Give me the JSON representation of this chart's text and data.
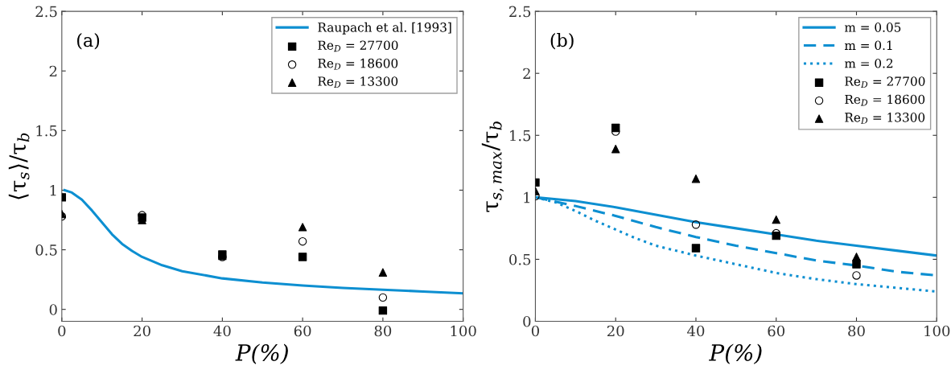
{
  "chart_data": [
    {
      "type": "scatter",
      "xlabel": "P(%)",
      "ylabel": "⟨τ$_{s}$⟩/τ$_{b}$",
      "annotations": [
        "(a)"
      ],
      "xlim": [
        0,
        100
      ],
      "xticks": [
        0,
        20,
        40,
        60,
        80,
        100
      ],
      "ylim": [
        -0.1,
        2.5
      ],
      "yticks": [
        0,
        0.5,
        1,
        1.5,
        2,
        2.5
      ],
      "grid": false,
      "legend": "top right",
      "series": [
        {
          "name": "Raupach et al. [1993]",
          "type": "line",
          "line_style": "solid",
          "marker": "none",
          "color": "#0d8fd1",
          "x": [
            0.7,
            2.5,
            5,
            7.5,
            10,
            12.5,
            15,
            17.5,
            20,
            25,
            30,
            40,
            50,
            60,
            70,
            80,
            90,
            100
          ],
          "values": [
            1.0,
            0.98,
            0.92,
            0.83,
            0.73,
            0.63,
            0.55,
            0.49,
            0.44,
            0.37,
            0.32,
            0.26,
            0.225,
            0.2,
            0.18,
            0.165,
            0.15,
            0.135
          ]
        },
        {
          "name": "Re$_{D}$ = 27700",
          "marker": "square",
          "color": "#000000",
          "x": [
            0,
            20,
            40,
            60,
            80
          ],
          "values": [
            0.94,
            0.77,
            0.46,
            0.44,
            -0.01
          ]
        },
        {
          "name": "Re$_{D}$ = 18600",
          "marker": "circle",
          "color": "#000000",
          "x": [
            0,
            20,
            40,
            60,
            80
          ],
          "values": [
            0.78,
            0.79,
            0.44,
            0.57,
            0.1
          ]
        },
        {
          "name": "Re$_{D}$ = 13300",
          "marker": "triangle",
          "color": "#000000",
          "x": [
            0,
            20,
            40,
            60,
            80
          ],
          "values": [
            0.8,
            0.75,
            0.45,
            0.69,
            0.31
          ]
        }
      ]
    },
    {
      "type": "scatter",
      "xlabel": "P(%)",
      "ylabel": "τ$_{s,max}$/τ$_{b}$",
      "annotations": [
        "(b)"
      ],
      "xlim": [
        0,
        100
      ],
      "xticks": [
        0,
        20,
        40,
        60,
        80,
        100
      ],
      "ylim": [
        0,
        2.5
      ],
      "yticks": [
        0,
        0.5,
        1,
        1.5,
        2,
        2.5
      ],
      "grid": false,
      "legend": "top right",
      "series": [
        {
          "name": "m = 0.05",
          "type": "line",
          "line_style": "solid",
          "marker": "none",
          "color": "#0d8fd1",
          "x": [
            0,
            10,
            20,
            30,
            40,
            50,
            60,
            70,
            80,
            90,
            100
          ],
          "values": [
            1.0,
            0.97,
            0.92,
            0.86,
            0.8,
            0.75,
            0.7,
            0.65,
            0.61,
            0.57,
            0.53
          ]
        },
        {
          "name": "m = 0.1",
          "type": "line",
          "line_style": "dashed",
          "marker": "none",
          "color": "#0d8fd1",
          "x": [
            0,
            10,
            20,
            30,
            40,
            50,
            60,
            70,
            80,
            90,
            100
          ],
          "values": [
            1.0,
            0.93,
            0.85,
            0.76,
            0.68,
            0.61,
            0.55,
            0.49,
            0.45,
            0.4,
            0.37
          ]
        },
        {
          "name": "m = 0.2",
          "type": "line",
          "line_style": "dotted",
          "marker": "none",
          "color": "#0d8fd1",
          "x": [
            0,
            5,
            10,
            15,
            20,
            25,
            30,
            40,
            50,
            60,
            70,
            80,
            90,
            100
          ],
          "values": [
            1.0,
            0.96,
            0.89,
            0.81,
            0.74,
            0.67,
            0.61,
            0.53,
            0.46,
            0.39,
            0.34,
            0.3,
            0.27,
            0.24
          ]
        },
        {
          "name": "Re$_{D}$ = 27700",
          "marker": "square",
          "color": "#000000",
          "x": [
            0,
            20,
            40,
            60,
            80
          ],
          "values": [
            1.12,
            1.56,
            0.59,
            0.69,
            0.46
          ]
        },
        {
          "name": "Re$_{D}$ = 18600",
          "marker": "circle",
          "color": "#000000",
          "x": [
            0,
            20,
            40,
            60,
            80
          ],
          "values": [
            1.01,
            1.53,
            0.78,
            0.71,
            0.37
          ]
        },
        {
          "name": "Re$_{D}$ = 13300",
          "marker": "triangle",
          "color": "#000000",
          "x": [
            0,
            20,
            40,
            60,
            80
          ],
          "values": [
            1.05,
            1.39,
            1.15,
            0.82,
            0.52
          ]
        }
      ]
    }
  ]
}
